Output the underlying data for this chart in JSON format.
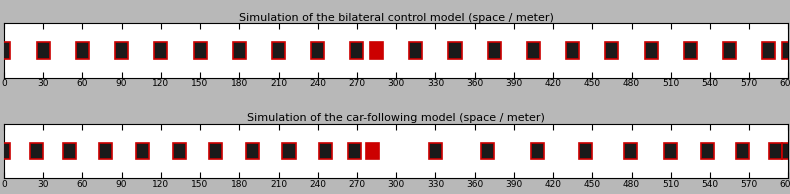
{
  "title1": "Simulation of the bilateral control model (space / meter)",
  "title2": "Simulation of the car-following model (space / meter)",
  "xlim": [
    0,
    600
  ],
  "xticks": [
    0,
    30,
    60,
    90,
    120,
    150,
    180,
    210,
    240,
    270,
    300,
    330,
    360,
    390,
    420,
    450,
    480,
    510,
    540,
    570,
    600
  ],
  "bg_color": "#b8b8b8",
  "road_color": "#ffffff",
  "car_color": "#1a1a1a",
  "car_edge_color": "#cc0000",
  "highlight_color": "#cc0000",
  "highlight_edge_color": "#cc0000",
  "cars_bilateral": [
    0,
    30,
    60,
    90,
    120,
    150,
    180,
    210,
    240,
    270,
    285,
    315,
    345,
    375,
    405,
    435,
    465,
    495,
    525,
    555,
    585,
    600
  ],
  "highlight_bilateral": 285,
  "cars_following": [
    0,
    25,
    50,
    78,
    106,
    134,
    162,
    190,
    218,
    246,
    268,
    282,
    330,
    370,
    408,
    445,
    479,
    510,
    538,
    565,
    590,
    600
  ],
  "highlight_following": 282
}
